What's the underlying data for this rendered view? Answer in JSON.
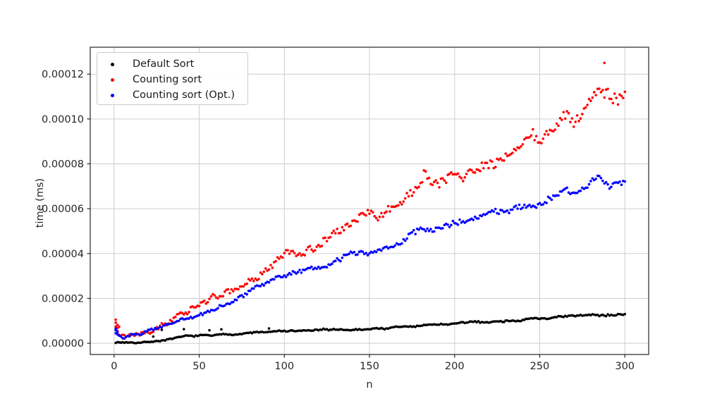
{
  "figure": {
    "background": "#ffffff",
    "xlabel": "n",
    "ylabel": "time (ms)"
  },
  "legend": {
    "entries": [
      {
        "label": "Default Sort",
        "color": "#000000"
      },
      {
        "label": "Counting sort",
        "color": "#ff0000"
      },
      {
        "label": "Counting sort (Opt.)",
        "color": "#0000ff"
      }
    ]
  },
  "chart_data": {
    "type": "scatter",
    "title": "",
    "xlabel": "n",
    "ylabel": "time (ms)",
    "xlim": [
      -14,
      314
    ],
    "ylim": [
      -5e-06,
      0.000132
    ],
    "x_ticks": [
      0,
      50,
      100,
      150,
      200,
      250,
      300
    ],
    "x_tick_labels": [
      "0",
      "50",
      "100",
      "150",
      "200",
      "250",
      "300"
    ],
    "y_ticks": [
      0,
      2e-05,
      4e-05,
      6e-05,
      8e-05,
      0.0001,
      0.00012
    ],
    "y_tick_labels": [
      "0.00000",
      "0.00002",
      "0.00004",
      "0.00006",
      "0.00008",
      "0.00010",
      "0.00012"
    ],
    "grid": true,
    "grid_color": "#cdcdcd",
    "axis_color": "#262626",
    "tick_label_color": "#262626",
    "legend_position": "upper left",
    "marker_radius": 1.8,
    "n_points_per_series": 300,
    "series": [
      {
        "name": "Default Sort",
        "color": "#000000",
        "anchors": [
          [
            1,
            5e-07
          ],
          [
            4,
            3.5e-07
          ],
          [
            8,
            4.5e-07
          ],
          [
            12,
            5.5e-07
          ],
          [
            16,
            7e-07
          ],
          [
            20,
            8.5e-07
          ],
          [
            25,
            1.2e-06
          ],
          [
            30,
            1.7e-06
          ],
          [
            35,
            2.2e-06
          ],
          [
            40,
            2.7e-06
          ],
          [
            45,
            3e-06
          ],
          [
            50,
            3.2e-06
          ],
          [
            55,
            3.4e-06
          ],
          [
            60,
            3.6e-06
          ],
          [
            65,
            3.9e-06
          ],
          [
            70,
            4.2e-06
          ],
          [
            75,
            4.4e-06
          ],
          [
            80,
            4.6e-06
          ],
          [
            85,
            4.9e-06
          ],
          [
            90,
            5e-06
          ],
          [
            95,
            5.2e-06
          ],
          [
            100,
            5.3e-06
          ],
          [
            110,
            5.5e-06
          ],
          [
            120,
            5.7e-06
          ],
          [
            130,
            5.9e-06
          ],
          [
            140,
            6.1e-06
          ],
          [
            150,
            6.3e-06
          ],
          [
            160,
            6.8e-06
          ],
          [
            170,
            7.3e-06
          ],
          [
            180,
            7.8e-06
          ],
          [
            190,
            8.3e-06
          ],
          [
            200,
            8.7e-06
          ],
          [
            210,
            9.2e-06
          ],
          [
            220,
            9.6e-06
          ],
          [
            230,
            1.01e-05
          ],
          [
            240,
            1.06e-05
          ],
          [
            250,
            1.11e-05
          ],
          [
            260,
            1.15e-05
          ],
          [
            270,
            1.19e-05
          ],
          [
            280,
            1.23e-05
          ],
          [
            290,
            1.28e-05
          ],
          [
            300,
            1.32e-05
          ]
        ],
        "extra_points": [
          [
            23,
            3e-06
          ],
          [
            28,
            6e-06
          ],
          [
            41,
            6.3e-06
          ],
          [
            56,
            5.8e-06
          ],
          [
            63,
            6.2e-06
          ],
          [
            91,
            6.6e-06
          ]
        ],
        "noise": {
          "seed": 7,
          "base": 1.5e-07,
          "per_n": 8e-10,
          "wiggle": 2.2e-07,
          "decay": 0.88
        }
      },
      {
        "name": "Counting sort",
        "color": "#ff0000",
        "anchors": [
          [
            1,
            7.5e-06
          ],
          [
            3,
            5.5e-06
          ],
          [
            6,
            4.2e-06
          ],
          [
            10,
            4.5e-06
          ],
          [
            15,
            5.8e-06
          ],
          [
            20,
            7.2e-06
          ],
          [
            25,
            8.8e-06
          ],
          [
            30,
            1.05e-05
          ],
          [
            35,
            1.2e-05
          ],
          [
            40,
            1.38e-05
          ],
          [
            45,
            1.55e-05
          ],
          [
            50,
            1.72e-05
          ],
          [
            55,
            1.9e-05
          ],
          [
            60,
            2.05e-05
          ],
          [
            65,
            2.2e-05
          ],
          [
            70,
            2.35e-05
          ],
          [
            75,
            2.5e-05
          ],
          [
            80,
            2.7e-05
          ],
          [
            85,
            2.9e-05
          ],
          [
            90,
            3.2e-05
          ],
          [
            95,
            3.6e-05
          ],
          [
            100,
            3.95e-05
          ],
          [
            105,
            4e-05
          ],
          [
            110,
            4.1e-05
          ],
          [
            115,
            4.2e-05
          ],
          [
            120,
            4.35e-05
          ],
          [
            125,
            4.6e-05
          ],
          [
            130,
            4.85e-05
          ],
          [
            135,
            5.1e-05
          ],
          [
            140,
            5.4e-05
          ],
          [
            145,
            5.7e-05
          ],
          [
            150,
            5.95e-05
          ],
          [
            155,
            5.65e-05
          ],
          [
            160,
            5.8e-05
          ],
          [
            165,
            6.1e-05
          ],
          [
            170,
            6.4e-05
          ],
          [
            175,
            6.7e-05
          ],
          [
            180,
            7.1e-05
          ],
          [
            183,
            7.7e-05
          ],
          [
            186,
            7.15e-05
          ],
          [
            190,
            7.1e-05
          ],
          [
            195,
            7.3e-05
          ],
          [
            200,
            7.5e-05
          ],
          [
            205,
            7.3e-05
          ],
          [
            210,
            7.8e-05
          ],
          [
            215,
            8e-05
          ],
          [
            220,
            8e-05
          ],
          [
            225,
            8.1e-05
          ],
          [
            230,
            8.3e-05
          ],
          [
            235,
            8.6e-05
          ],
          [
            240,
            8.9e-05
          ],
          [
            245,
            9.4e-05
          ],
          [
            250,
            9e-05
          ],
          [
            255,
            9.4e-05
          ],
          [
            260,
            9.7e-05
          ],
          [
            265,
            0.000101
          ],
          [
            270,
            9.7e-05
          ],
          [
            275,
            0.000103
          ],
          [
            280,
            0.000108
          ],
          [
            285,
            0.000115
          ],
          [
            290,
            0.000112
          ],
          [
            295,
            0.000109
          ],
          [
            300,
            0.000111
          ]
        ],
        "extra_points": [
          [
            1,
            1.05e-05
          ],
          [
            1,
            9.2e-06
          ],
          [
            2,
            8.2e-06
          ],
          [
            2,
            6.8e-06
          ],
          [
            3,
            7.4e-06
          ],
          [
            288,
            0.000125
          ]
        ],
        "noise": {
          "seed": 13,
          "base": 6e-07,
          "per_n": 6e-09,
          "wiggle": 7e-07,
          "decay": 0.88
        }
      },
      {
        "name": "Counting sort (Opt.)",
        "color": "#0000ff",
        "anchors": [
          [
            1,
            5e-06
          ],
          [
            3,
            4e-06
          ],
          [
            6,
            3e-06
          ],
          [
            10,
            3.2e-06
          ],
          [
            15,
            4.2e-06
          ],
          [
            20,
            5.5e-06
          ],
          [
            25,
            6.8e-06
          ],
          [
            30,
            8e-06
          ],
          [
            35,
            9.5e-06
          ],
          [
            40,
            1.08e-05
          ],
          [
            45,
            1.15e-05
          ],
          [
            50,
            1.2e-05
          ],
          [
            55,
            1.35e-05
          ],
          [
            60,
            1.55e-05
          ],
          [
            65,
            1.72e-05
          ],
          [
            70,
            1.9e-05
          ],
          [
            75,
            2.1e-05
          ],
          [
            80,
            2.3e-05
          ],
          [
            85,
            2.5e-05
          ],
          [
            90,
            2.65e-05
          ],
          [
            95,
            2.85e-05
          ],
          [
            100,
            3e-05
          ],
          [
            105,
            3.15e-05
          ],
          [
            110,
            3.2e-05
          ],
          [
            115,
            3.3e-05
          ],
          [
            120,
            3.35e-05
          ],
          [
            125,
            3.45e-05
          ],
          [
            130,
            3.7e-05
          ],
          [
            135,
            3.9e-05
          ],
          [
            140,
            4e-05
          ],
          [
            150,
            4e-05
          ],
          [
            155,
            4.15e-05
          ],
          [
            160,
            4.3e-05
          ],
          [
            165,
            4.45e-05
          ],
          [
            170,
            4.6e-05
          ],
          [
            175,
            4.85e-05
          ],
          [
            180,
            5.1e-05
          ],
          [
            185,
            5e-05
          ],
          [
            190,
            5.1e-05
          ],
          [
            195,
            5.2e-05
          ],
          [
            200,
            5.3e-05
          ],
          [
            205,
            5.45e-05
          ],
          [
            210,
            5.6e-05
          ],
          [
            215,
            5.75e-05
          ],
          [
            220,
            5.8e-05
          ],
          [
            230,
            5.9e-05
          ],
          [
            235,
            6e-05
          ],
          [
            240,
            6.1e-05
          ],
          [
            250,
            6.2e-05
          ],
          [
            255,
            6.4e-05
          ],
          [
            260,
            6.6e-05
          ],
          [
            265,
            6.9e-05
          ],
          [
            270,
            6.7e-05
          ],
          [
            275,
            6.9e-05
          ],
          [
            280,
            7.2e-05
          ],
          [
            285,
            7.6e-05
          ],
          [
            290,
            7.1e-05
          ],
          [
            295,
            7.2e-05
          ],
          [
            300,
            7.25e-05
          ]
        ],
        "extra_points": [
          [
            1,
            6.5e-06
          ],
          [
            1,
            5.8e-06
          ],
          [
            2,
            5e-06
          ]
        ],
        "noise": {
          "seed": 29,
          "base": 4e-07,
          "per_n": 3e-09,
          "wiggle": 4.5e-07,
          "decay": 0.88
        }
      }
    ]
  }
}
